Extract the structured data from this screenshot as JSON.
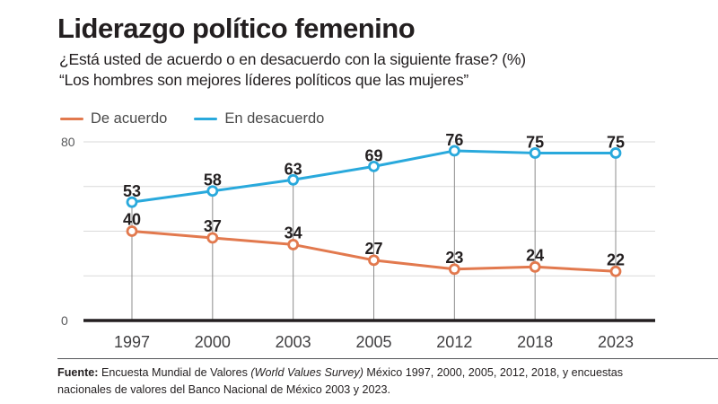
{
  "title": "Liderazgo político femenino",
  "subtitle_question": "¿Está usted de acuerdo o en desacuerdo con la siguiente frase? (%)",
  "subtitle_statement": "“Los hombres son mejores líderes políticos que las mujeres”",
  "legend": [
    {
      "label": "De acuerdo",
      "color": "#E2794E"
    },
    {
      "label": "En desacuerdo",
      "color": "#29A9DC"
    }
  ],
  "chart_data": {
    "type": "line",
    "categories": [
      "1997",
      "2000",
      "2003",
      "2005",
      "2012",
      "2018",
      "2023"
    ],
    "series": [
      {
        "name": "De acuerdo",
        "color": "#E2794E",
        "values": [
          40,
          37,
          34,
          27,
          23,
          24,
          22
        ]
      },
      {
        "name": "En desacuerdo",
        "color": "#29A9DC",
        "values": [
          53,
          58,
          63,
          69,
          76,
          75,
          75
        ]
      }
    ],
    "ylim": [
      0,
      80
    ],
    "yticks_labeled": [
      0,
      80
    ],
    "gridlines": [
      20,
      40,
      60,
      80
    ],
    "grid": true,
    "legend_position": "top-left",
    "marker": "open-circle",
    "value_labels": true
  },
  "colors": {
    "text": "#231F20",
    "grid": "#D9D9D9",
    "guide": "#8C8C8C",
    "axis": "#231F20",
    "tick_label": "#58595B",
    "year_label": "#414042",
    "data_label": "#231F20"
  },
  "footer": {
    "source_label": "Fuente:",
    "text_1": " Encuesta Mundial de Valores ",
    "text_italic": "(World Values Survey)",
    "text_2a": " México 1997, 2000, 2005, 2012, 2018, y encuestas",
    "text_2b": "nacionales de valores del Banco Nacional de México 2003 y 2023."
  }
}
